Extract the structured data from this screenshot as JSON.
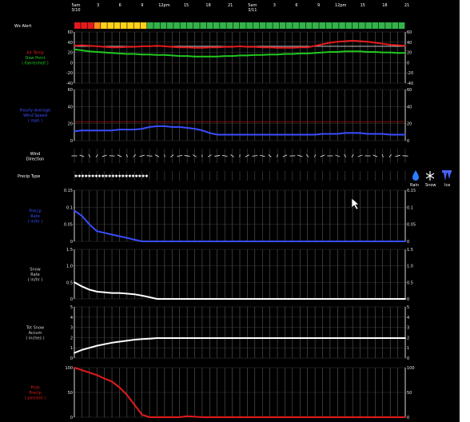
{
  "header": {
    "time_labels": [
      "5am\n3/10",
      "3",
      "6",
      "9",
      "12pm",
      "15",
      "18",
      "21",
      "5am\n3/11",
      "3",
      "6",
      "9",
      "12pm",
      "15",
      "18",
      "21"
    ],
    "advisory_label": "Wx Alert"
  },
  "colors": {
    "background": "#000000",
    "temperature": "#e31a1c",
    "dewpoint": "#20c820",
    "wind": "#3b4dff",
    "rain_rate": "#3b4dff",
    "snow_rate": "#ffffff",
    "snow_amount": "#ffffff",
    "pop": "#e31a1c",
    "alert_red": "#e31a1c",
    "alert_orange": "#ff8c1a",
    "alert_yellow": "#ffd21a",
    "alert_green": "#33b34a"
  },
  "alert_strip": [
    "red",
    "red",
    "red",
    "orange",
    "yellow",
    "yellow",
    "yellow",
    "yellow",
    "yellow",
    "yellow",
    "yellow",
    "green",
    "green",
    "green",
    "green",
    "green",
    "green",
    "green",
    "green",
    "green",
    "green",
    "green",
    "green",
    "green",
    "green",
    "green",
    "green",
    "green",
    "green",
    "green",
    "green",
    "green",
    "green",
    "green",
    "green",
    "green",
    "green",
    "green",
    "green",
    "green",
    "green",
    "green",
    "green",
    "green",
    "green",
    "green",
    "green",
    "green",
    "green",
    "green"
  ],
  "precip_legend": {
    "rain": "Rain",
    "snow": "Snow",
    "ice": "Ice",
    "icons": [
      "raindrop-icon",
      "snowflake-icon",
      "ice-icon"
    ]
  },
  "chart_data": [
    {
      "type": "line",
      "title": "",
      "label_lines": [
        "Air Temp",
        "Dew Point",
        "( Fahrenheit )"
      ],
      "yticks": [
        "60",
        "40",
        "20",
        "0",
        "-20",
        "-40"
      ],
      "ylim": [
        -40,
        60
      ],
      "series": [
        {
          "color": "#e31a1c",
          "values": [
            33,
            34,
            33,
            32,
            31,
            30,
            30,
            31,
            31,
            32,
            32,
            33,
            32,
            31,
            30,
            30,
            29,
            29,
            30,
            30,
            31,
            31,
            32,
            31,
            31,
            30,
            30,
            29,
            29,
            29,
            30,
            30,
            33,
            36,
            39,
            41,
            42,
            43,
            42,
            41,
            39,
            37,
            35,
            34,
            33
          ]
        },
        {
          "color": "#20c820",
          "values": [
            26,
            24,
            22,
            21,
            20,
            19,
            18,
            17,
            17,
            16,
            16,
            15,
            15,
            14,
            13,
            13,
            12,
            12,
            12,
            12,
            13,
            13,
            14,
            14,
            15,
            15,
            16,
            16,
            17,
            17,
            18,
            18,
            19,
            20,
            21,
            21,
            22,
            22,
            22,
            21,
            21,
            20,
            20,
            19,
            19
          ]
        }
      ],
      "ref_line": 32
    },
    {
      "type": "line",
      "label_lines": [
        "Hourly Average",
        "Wind Speed",
        "( mph )"
      ],
      "yticks": [
        "60",
        "40",
        "20",
        "0"
      ],
      "ylim": [
        0,
        60
      ],
      "series": [
        {
          "color": "#3b4dff",
          "values": [
            11,
            12,
            12,
            12,
            12,
            12,
            13,
            13,
            13,
            14,
            16,
            17,
            17,
            16,
            16,
            15,
            14,
            12,
            9,
            7,
            7,
            7,
            7,
            7,
            7,
            7,
            7,
            7,
            7,
            7,
            7,
            7,
            7,
            8,
            8,
            8,
            9,
            9,
            9,
            8,
            8,
            8,
            7,
            7,
            7
          ]
        }
      ],
      "ref_line": 22
    },
    {
      "type": "wind_barbs",
      "label_lines": [
        "Wind",
        "Direction"
      ]
    },
    {
      "type": "precip_type",
      "label_lines": [
        "Precip Type"
      ],
      "snow_hours": 22
    },
    {
      "type": "line",
      "label_lines": [
        "Precip",
        "Rate",
        "( in/hr )"
      ],
      "yticks": [
        "0.15",
        "0.1",
        "0.05",
        "0"
      ],
      "ylim": [
        0,
        0.15
      ],
      "series": [
        {
          "color": "#3b4dff",
          "values": [
            0.09,
            0.075,
            0.05,
            0.03,
            0.025,
            0.02,
            0.015,
            0.01,
            0.005,
            0,
            0,
            0,
            0,
            0,
            0,
            0,
            0,
            0,
            0,
            0,
            0,
            0,
            0,
            0,
            0,
            0,
            0,
            0,
            0,
            0,
            0,
            0,
            0,
            0,
            0,
            0,
            0,
            0,
            0,
            0,
            0,
            0,
            0,
            0,
            0
          ]
        }
      ]
    },
    {
      "type": "line",
      "label_lines": [
        "Snow",
        "Rate",
        "( in/hr )"
      ],
      "yticks": [
        "1.5",
        "1.0",
        "0.5",
        "0"
      ],
      "ylim": [
        0,
        1.5
      ],
      "series": [
        {
          "color": "#ffffff",
          "values": [
            0.5,
            0.38,
            0.28,
            0.22,
            0.2,
            0.18,
            0.18,
            0.16,
            0.14,
            0.1,
            0.05,
            0,
            0,
            0,
            0,
            0,
            0,
            0,
            0,
            0,
            0,
            0,
            0,
            0,
            0,
            0,
            0,
            0,
            0,
            0,
            0,
            0,
            0,
            0,
            0,
            0,
            0,
            0,
            0,
            0,
            0,
            0,
            0,
            0,
            0
          ]
        }
      ]
    },
    {
      "type": "line",
      "label_lines": [
        "Tot Snow",
        "Accum",
        "( inches )"
      ],
      "yticks": [
        "5",
        "4",
        "3",
        "2",
        "1",
        "0"
      ],
      "ylim": [
        0,
        5
      ],
      "series": [
        {
          "color": "#ffffff",
          "values": [
            0.5,
            0.8,
            1.0,
            1.2,
            1.35,
            1.5,
            1.6,
            1.7,
            1.8,
            1.85,
            1.9,
            1.95,
            1.95,
            1.95,
            1.95,
            1.95,
            1.95,
            1.95,
            1.95,
            1.95,
            1.95,
            1.95,
            1.95,
            1.95,
            1.95,
            1.95,
            1.95,
            1.95,
            1.95,
            1.95,
            1.95,
            1.95,
            1.95,
            1.95,
            1.95,
            1.95,
            1.95,
            1.95,
            1.95,
            1.95,
            1.95,
            1.95,
            1.95,
            1.95,
            1.95
          ]
        }
      ]
    },
    {
      "type": "line",
      "label_lines": [
        "Prob",
        "Precip",
        "( percent )"
      ],
      "yticks": [
        "100",
        "50",
        "0"
      ],
      "ylim": [
        0,
        100
      ],
      "series": [
        {
          "color": "#e31a1c",
          "values": [
            100,
            95,
            90,
            85,
            78,
            72,
            60,
            45,
            25,
            5,
            0,
            0,
            0,
            0,
            0,
            2,
            1,
            0,
            0,
            0,
            0,
            0,
            0,
            0,
            0,
            0,
            0,
            0,
            0,
            0,
            0,
            0,
            0,
            0,
            0,
            0,
            0,
            0,
            0,
            0,
            0,
            0,
            0,
            0,
            0
          ]
        }
      ]
    }
  ]
}
